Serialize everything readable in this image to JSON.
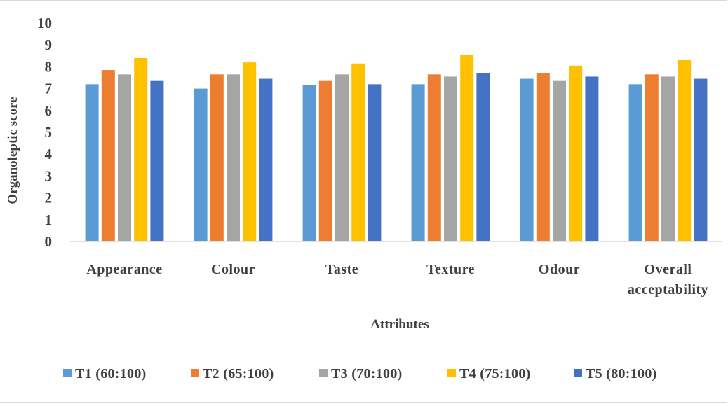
{
  "chart_data": {
    "type": "bar",
    "xlabel": "Attributes",
    "ylabel": "Organoleptic score",
    "ylim": [
      0,
      10
    ],
    "yticks": [
      "0",
      "1",
      "2",
      "3",
      "4",
      "5",
      "6",
      "7",
      "8",
      "9",
      "10"
    ],
    "grid": false,
    "legend_position": "bottom",
    "categories": [
      [
        "Appearance"
      ],
      [
        "Colour"
      ],
      [
        "Taste"
      ],
      [
        "Texture"
      ],
      [
        "Odour"
      ],
      [
        "Overall",
        "acceptability"
      ]
    ],
    "series": [
      {
        "name": "T1 (60:100)",
        "color": "#5b9bd5",
        "values": [
          7.2,
          7.0,
          7.15,
          7.2,
          7.45,
          7.2
        ]
      },
      {
        "name": "T2 (65:100)",
        "color": "#ed7d31",
        "values": [
          7.85,
          7.65,
          7.35,
          7.65,
          7.7,
          7.65
        ]
      },
      {
        "name": "T3 (70:100)",
        "color": "#a5a5a5",
        "values": [
          7.65,
          7.65,
          7.65,
          7.55,
          7.35,
          7.55
        ]
      },
      {
        "name": "T4 (75:100)",
        "color": "#ffc000",
        "values": [
          8.4,
          8.2,
          8.15,
          8.55,
          8.05,
          8.3
        ]
      },
      {
        "name": "T5 (80:100)",
        "color": "#4472c4",
        "values": [
          7.35,
          7.45,
          7.2,
          7.7,
          7.55,
          7.45
        ]
      }
    ]
  }
}
